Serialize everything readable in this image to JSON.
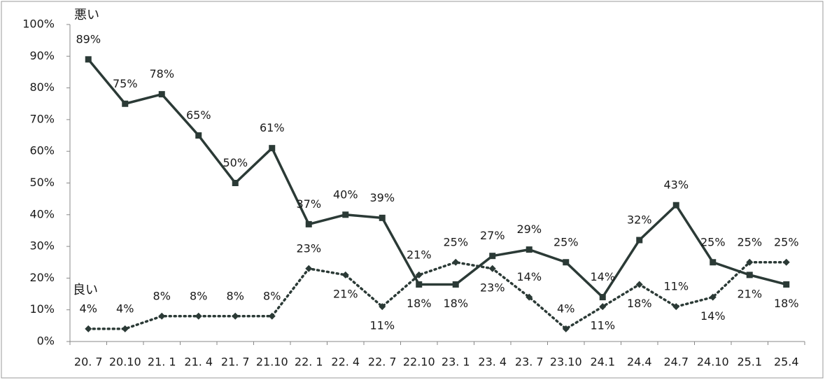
{
  "chart_data": {
    "type": "line",
    "categories": [
      "20. 7",
      "20.10",
      "21. 1",
      "21. 4",
      "21. 7",
      "21.10",
      "22. 1",
      "22. 4",
      "22. 7",
      "22.10",
      "23. 1",
      "23. 4",
      "23. 7",
      "23.10",
      "24.1",
      "24.4",
      "24.7",
      "24.10",
      "25.1",
      "25.4"
    ],
    "series": [
      {
        "name": "悪い",
        "color": "#2b3a36",
        "marker": "square",
        "line_style": "solid",
        "values": [
          89,
          75,
          78,
          65,
          50,
          61,
          37,
          40,
          39,
          18,
          18,
          27,
          29,
          25,
          14,
          32,
          43,
          25,
          21,
          18
        ],
        "value_labels": [
          "89%",
          "75%",
          "78%",
          "65%",
          "50%",
          "61%",
          "37%",
          "40%",
          "39%",
          "18%",
          "18%",
          "27%",
          "29%",
          "25%",
          "14%",
          "32%",
          "43%",
          "25%",
          "21%",
          "18%"
        ]
      },
      {
        "name": "良い",
        "color": "#2b3a36",
        "marker": "diamond",
        "line_style": "dotted",
        "values": [
          4,
          4,
          8,
          8,
          8,
          8,
          23,
          21,
          11,
          21,
          25,
          23,
          14,
          4,
          11,
          18,
          11,
          14,
          25,
          25
        ],
        "value_labels": [
          "4%",
          "4%",
          "8%",
          "8%",
          "8%",
          "8%",
          "23%",
          "21%",
          "11%",
          "21%",
          "25%",
          "23%",
          "14%",
          "4%",
          "11%",
          "18%",
          "11%",
          "14%",
          "25%",
          "25%"
        ]
      }
    ],
    "ylim": [
      0,
      100
    ],
    "yticks": [
      {
        "value": 0,
        "label": "0%"
      },
      {
        "value": 10,
        "label": "10%"
      },
      {
        "value": 20,
        "label": "20%"
      },
      {
        "value": 30,
        "label": "30%"
      },
      {
        "value": 40,
        "label": "40%"
      },
      {
        "value": 50,
        "label": "50%"
      },
      {
        "value": 60,
        "label": "60%"
      },
      {
        "value": 70,
        "label": "70%"
      },
      {
        "value": 80,
        "label": "80%"
      },
      {
        "value": 90,
        "label": "90%"
      },
      {
        "value": 100,
        "label": "100%"
      }
    ],
    "grid": false
  }
}
